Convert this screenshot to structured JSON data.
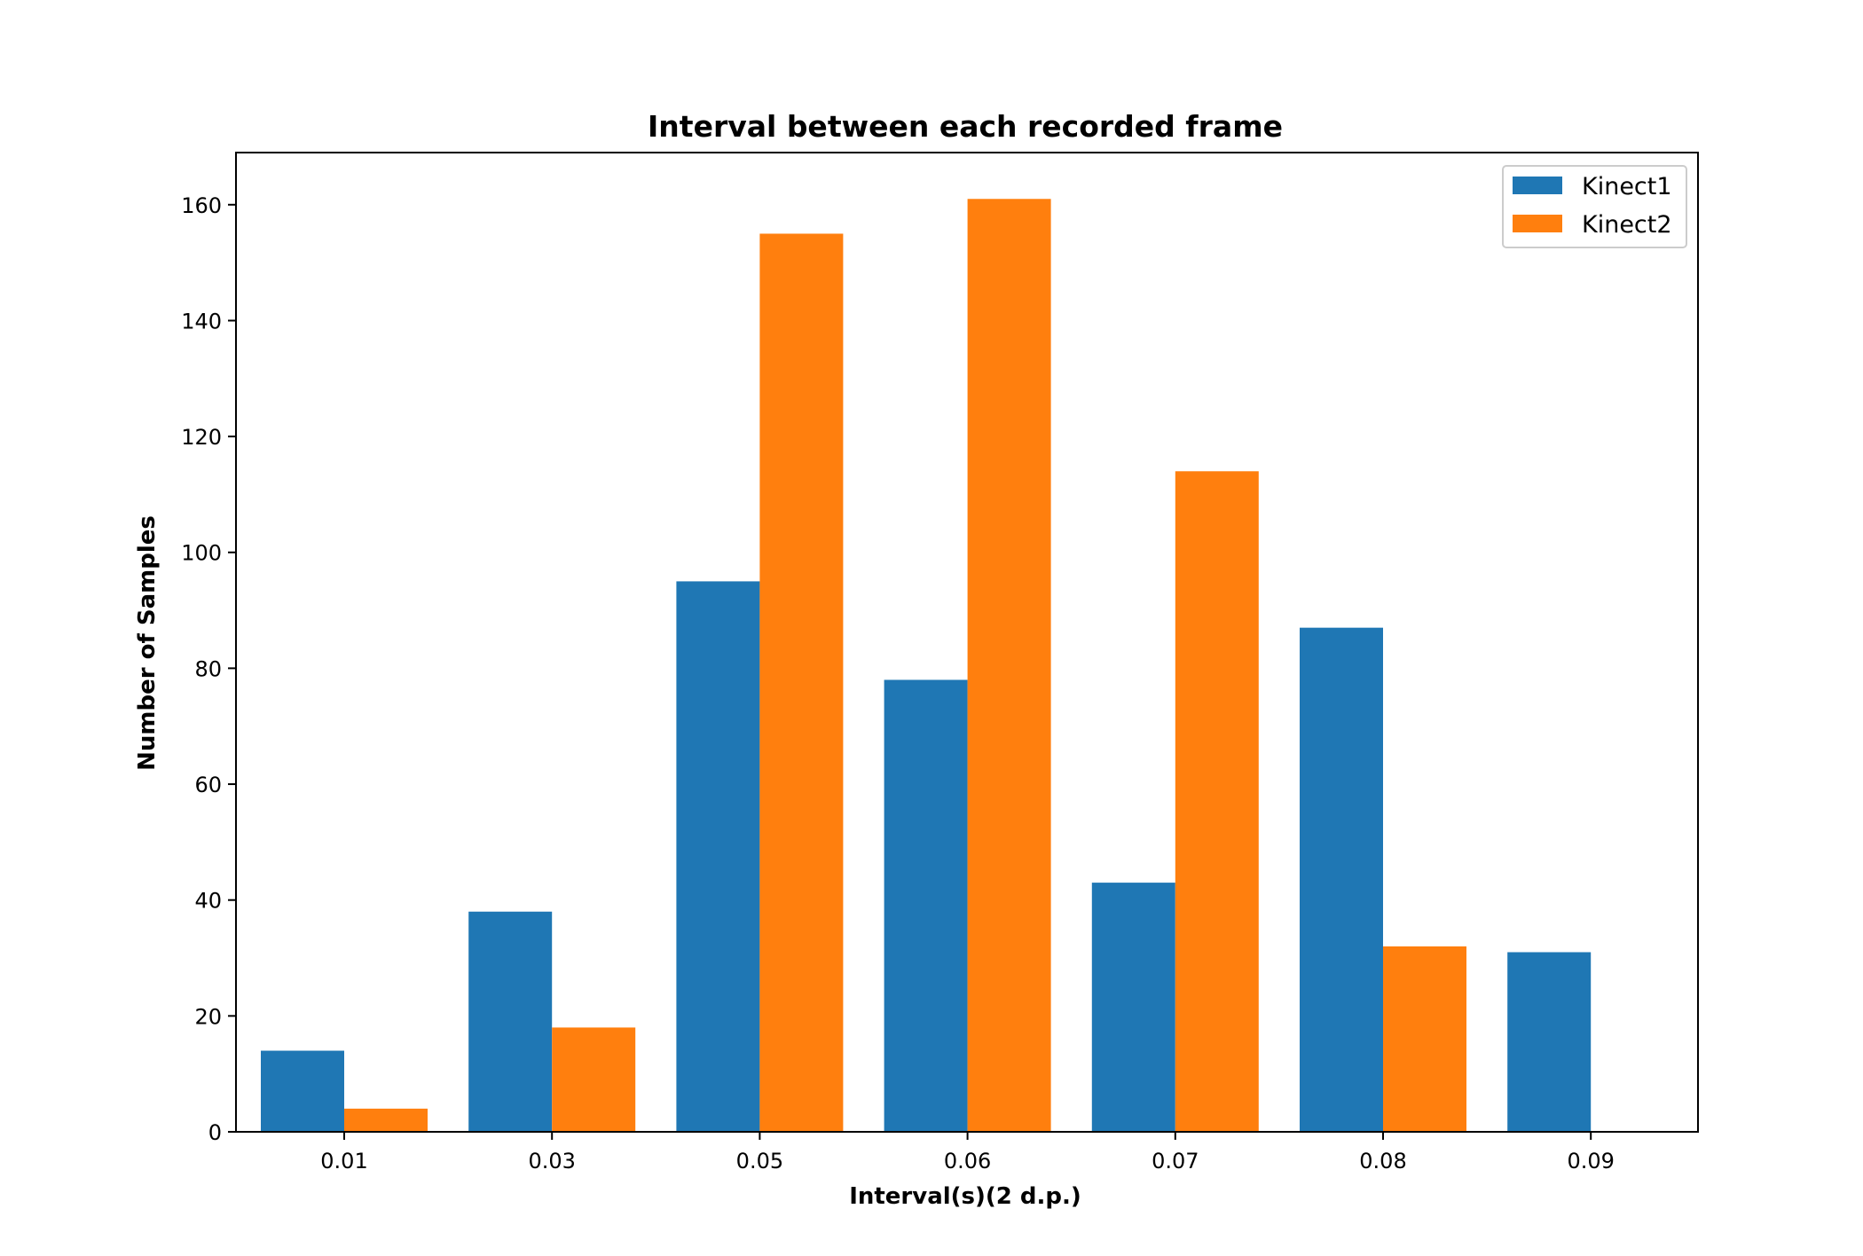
{
  "chart_data": {
    "type": "bar",
    "title": "Interval between each recorded frame",
    "xlabel": "Interval(s)(2 d.p.)",
    "ylabel": "Number of Samples",
    "categories": [
      "0.01",
      "0.03",
      "0.05",
      "0.06",
      "0.07",
      "0.08",
      "0.09"
    ],
    "series": [
      {
        "name": "Kinect1",
        "color": "#1f77b4",
        "values": [
          14,
          38,
          95,
          78,
          43,
          87,
          31
        ]
      },
      {
        "name": "Kinect2",
        "color": "#ff7f0e",
        "values": [
          4,
          18,
          155,
          161,
          114,
          32,
          0
        ]
      }
    ],
    "ylim": [
      0,
      169
    ],
    "yticks": [
      0,
      20,
      40,
      60,
      80,
      100,
      120,
      140,
      160
    ],
    "grid": false,
    "legend": "top-right"
  }
}
